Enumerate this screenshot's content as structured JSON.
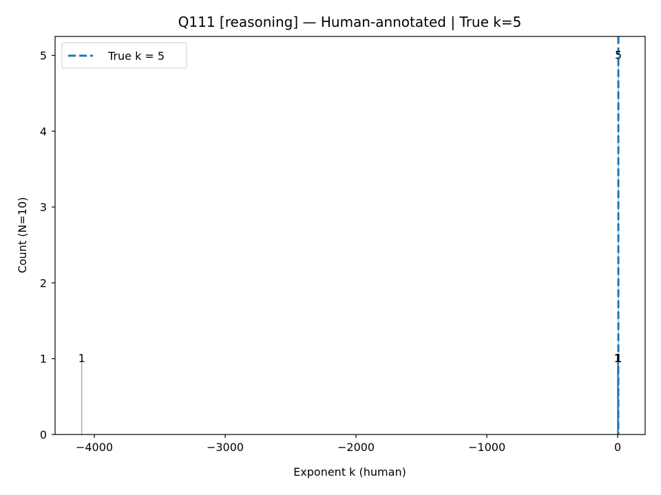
{
  "chart_data": {
    "type": "bar",
    "title": "Q111 [reasoning] — Human-annotated | True k=5",
    "xlabel": "Exponent k (human)",
    "ylabel": "Count (N=10)",
    "xlim": [
      -4300,
      210
    ],
    "ylim": [
      0,
      5.25
    ],
    "xticks": [
      -4000,
      -3000,
      -2000,
      -1000,
      0
    ],
    "xtick_labels": [
      "−4000",
      "−3000",
      "−2000",
      "−1000",
      "0"
    ],
    "yticks": [
      0,
      1,
      2,
      3,
      4,
      5
    ],
    "ytick_labels": [
      "0",
      "1",
      "2",
      "3",
      "4",
      "5"
    ],
    "bars": [
      {
        "x": -4096,
        "count": 1,
        "label": "1"
      },
      {
        "x": -2,
        "count": 1,
        "label": "1"
      },
      {
        "x": 0,
        "count": 1,
        "label": "1"
      },
      {
        "x": 2,
        "count": 1,
        "label": "1"
      },
      {
        "x": 5,
        "count": 5,
        "label": "5"
      },
      {
        "x": 7,
        "count": 1,
        "label": "1"
      }
    ],
    "reference_line": {
      "x": 5,
      "style": "dashed",
      "color": "#1f77b4",
      "label": "True k = 5"
    },
    "legend": {
      "position": "top-left",
      "entries": [
        "True k = 5"
      ]
    },
    "grid": false
  }
}
